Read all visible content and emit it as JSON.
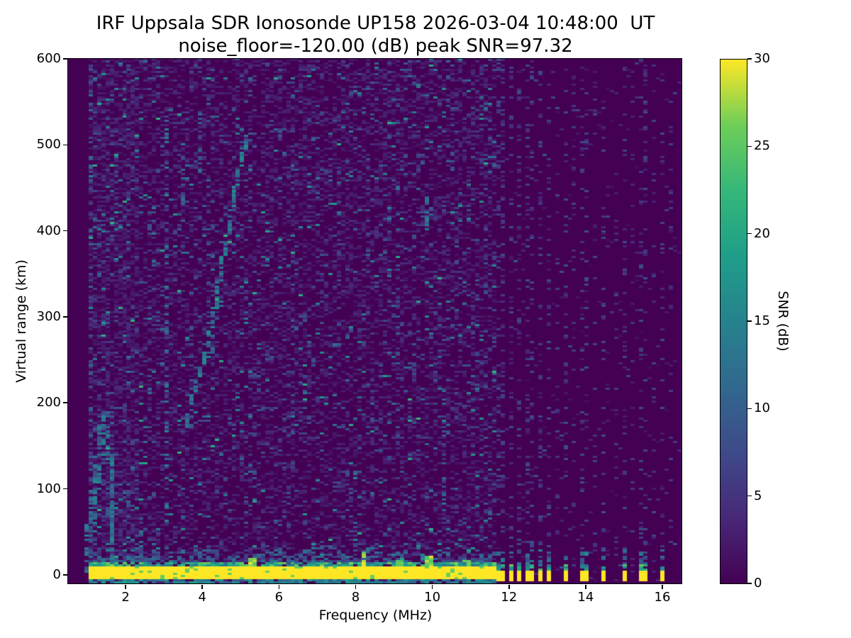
{
  "title": {
    "line1": "IRF Uppsala SDR Ionosonde UP158 2026-03-04 10:48:00  UT",
    "line2": "noise_floor=-120.00 (dB) peak SNR=97.32"
  },
  "chart_data": {
    "type": "heatmap",
    "xlabel": "Frequency (MHz)",
    "ylabel": "Virtual range (km)",
    "xlim": [
      0.5,
      16.5
    ],
    "ylim": [
      -10,
      600
    ],
    "xticks": [
      2,
      4,
      6,
      8,
      10,
      12,
      14,
      16
    ],
    "yticks": [
      0,
      100,
      200,
      300,
      400,
      500,
      600
    ],
    "grid": {
      "nx": 146,
      "ny": 247
    },
    "seed": 7,
    "colorbar": {
      "label": "SNR (dB)",
      "min": 0,
      "max": 30,
      "ticks": [
        0,
        5,
        10,
        15,
        20,
        25,
        30
      ]
    },
    "colormap": {
      "name": "viridis",
      "stops": [
        {
          "t": 0,
          "c": "#440154"
        },
        {
          "t": 0.125,
          "c": "#482878"
        },
        {
          "t": 0.25,
          "c": "#3e4a89"
        },
        {
          "t": 0.375,
          "c": "#31688e"
        },
        {
          "t": 0.5,
          "c": "#26828e"
        },
        {
          "t": 0.625,
          "c": "#1f9e89"
        },
        {
          "t": 0.75,
          "c": "#35b779"
        },
        {
          "t": 0.875,
          "c": "#6ece58"
        },
        {
          "t": 1,
          "c": "#fde725"
        }
      ]
    },
    "features": {
      "noise": {
        "silent_below": 1.0,
        "swept_max": 11.65,
        "levels": [
          [
            0.3,
            1,
            4
          ],
          [
            0.07,
            4,
            9
          ],
          [
            0.018,
            9,
            16
          ],
          [
            0.004,
            16,
            22
          ]
        ],
        "quiet_levels": [
          [
            0.025,
            1,
            4
          ],
          [
            0.004,
            4,
            9
          ]
        ],
        "low_boost": {
          "f_range": [
            1.0,
            2.35
          ],
          "factor": 1.5
        }
      },
      "ground_band": {
        "f_range": [
          1.0,
          11.65
        ],
        "core_r": [
          -6,
          10
        ],
        "edge_top": 14,
        "fringe_top": 38,
        "fringe_d": 0.8,
        "under_r": [
          -10,
          -6
        ],
        "blips": [
          {
            "f": 5.35,
            "r": [
              10,
              20
            ]
          },
          {
            "f": 8.22,
            "r": [
              10,
              27
            ]
          },
          {
            "f": 9.2,
            "r": [
              10,
              18
            ]
          },
          {
            "f": 9.95,
            "r": [
              10,
              22
            ]
          },
          {
            "f": 10.9,
            "r": [
              10,
              16
            ]
          }
        ]
      },
      "pulses": {
        "half_width": 0.08,
        "core_r": [
          -8,
          5
        ],
        "cluster": [
          11.79,
          12.05,
          12.3,
          12.55,
          12.8,
          13.03
        ],
        "sparse": [
          13.5,
          14.0,
          14.5,
          15.0,
          15.52,
          16.03
        ],
        "cluster_col_d": 0.2,
        "sparse_col_d": 0.13,
        "extra_columns": [
          13.25,
          13.75,
          14.25,
          14.75,
          15.25,
          15.75,
          16.25
        ],
        "extra_col_d": 0.08
      },
      "rfi_columns": [
        {
          "f": 1.02,
          "r": [
            0,
            60
          ],
          "d": 0.55,
          "s": [
            6,
            14
          ]
        },
        {
          "f": 1.13,
          "r": [
            20,
            590
          ],
          "d": 0.2,
          "s": [
            4,
            12
          ]
        },
        {
          "f": 1.68,
          "r": [
            0,
            135
          ],
          "d": 0.88,
          "s": [
            8,
            16
          ]
        },
        {
          "f": 1.68,
          "r": [
            135,
            178
          ],
          "d": 0.3,
          "s": [
            6,
            12
          ]
        },
        {
          "f": 2.42,
          "r": [
            0,
            70
          ],
          "d": 0.45,
          "s": [
            6,
            13
          ]
        },
        {
          "f": 3.07,
          "r": [
            70,
            530
          ],
          "d": 0.34,
          "s": [
            5,
            16
          ]
        },
        {
          "f": 3.5,
          "r": [
            370,
            480
          ],
          "d": 0.3,
          "s": [
            5,
            13
          ]
        },
        {
          "f": 3.93,
          "r": [
            455,
            540
          ],
          "d": 0.28,
          "s": [
            5,
            12
          ]
        },
        {
          "f": 6.4,
          "r": [
            90,
            580
          ],
          "d": 0.1,
          "s": [
            3,
            9
          ]
        },
        {
          "f": 7.55,
          "r": [
            260,
            470
          ],
          "d": 0.16,
          "s": [
            4,
            11
          ]
        },
        {
          "f": 8.02,
          "r": [
            0,
            130
          ],
          "d": 0.22,
          "s": [
            4,
            12
          ]
        },
        {
          "f": 9.05,
          "r": [
            140,
            580
          ],
          "d": 0.12,
          "s": [
            3,
            10
          ]
        },
        {
          "f": 9.82,
          "r": [
            400,
            440
          ],
          "d": 0.65,
          "s": [
            9,
            17
          ]
        },
        {
          "f": 10.33,
          "r": [
            60,
            220
          ],
          "d": 0.25,
          "s": [
            4,
            11
          ]
        },
        {
          "f": 10.6,
          "r": [
            0,
            600
          ],
          "d": 0.07,
          "s": [
            3,
            8
          ]
        },
        {
          "f": 11.1,
          "r": [
            0,
            600
          ],
          "d": 0.09,
          "s": [
            3,
            9
          ]
        },
        {
          "f": 11.45,
          "r": [
            0,
            600
          ],
          "d": 0.1,
          "s": [
            3,
            9
          ]
        }
      ],
      "echo_traces": [
        {
          "points": [
            [
              1.0,
              40
            ],
            [
              1.12,
              85
            ],
            [
              1.24,
              130
            ],
            [
              1.36,
              170
            ],
            [
              1.44,
              196
            ]
          ],
          "d": 0.7,
          "s": [
            7,
            16
          ],
          "w": 2
        },
        {
          "points": [
            [
              1.46,
              190
            ],
            [
              1.55,
              128
            ]
          ],
          "d": 0.38,
          "s": [
            6,
            13
          ],
          "w": 1
        },
        {
          "points": [
            [
              3.55,
              168
            ],
            [
              3.8,
              212
            ],
            [
              4.05,
              252
            ],
            [
              4.3,
              302
            ],
            [
              4.5,
              356
            ],
            [
              4.68,
              400
            ],
            [
              4.85,
              445
            ],
            [
              5.0,
              474
            ],
            [
              5.12,
              496
            ],
            [
              5.23,
              514
            ]
          ],
          "d": 0.72,
          "s": [
            8,
            17
          ],
          "w": 1
        }
      ]
    }
  }
}
